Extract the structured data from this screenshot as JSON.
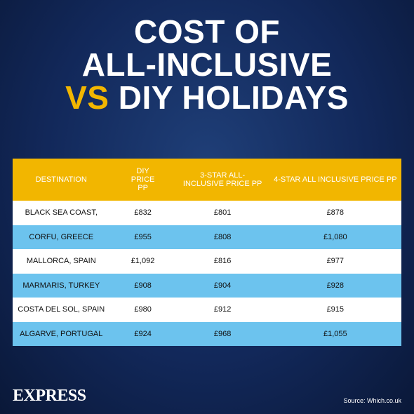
{
  "header": {
    "title": [
      "COST OF",
      "ALL-INCLUSIVE",
      "VS",
      "DIY HOLIDAYS"
    ]
  },
  "table": {
    "columns": [
      "DESTINATION",
      "DIY PRICE PP",
      "3-STAR ALL-INCLUSIVE PRICE PP",
      "4-STAR ALL INCLUSIVE PRICE PP"
    ],
    "rows": [
      [
        "BLACK SEA COAST,",
        "£832",
        "£801",
        "£878"
      ],
      [
        "CORFU, GREECE",
        "£955",
        "£808",
        "£1,080"
      ],
      [
        "MALLORCA, SPAIN",
        "£1,092",
        "£816",
        "£977"
      ],
      [
        "MARMARIS, TURKEY",
        "£908",
        "£904",
        "£928"
      ],
      [
        "COSTA DEL SOL, SPAIN",
        "£980",
        "£912",
        "£915"
      ],
      [
        "ALGARVE, PORTUGAL",
        "£924",
        "£968",
        "£1,055"
      ]
    ]
  },
  "footer": {
    "brand": "EXPRESS",
    "source": "Source: Which.co.uk"
  }
}
